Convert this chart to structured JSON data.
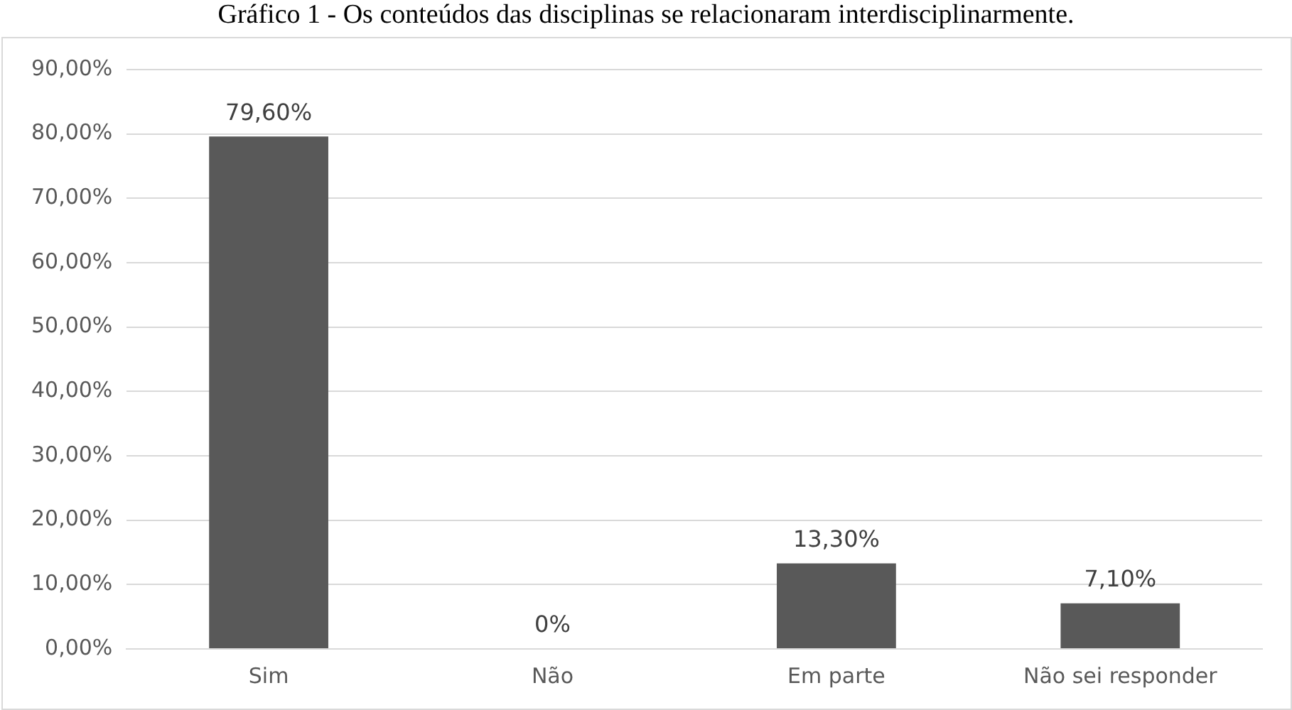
{
  "chart_data": {
    "type": "bar",
    "title": "Gráfico 1 - Os conteúdos das disciplinas se relacionaram interdisciplinarmente.",
    "categories": [
      "Sim",
      "Não",
      "Em parte",
      "Não sei responder"
    ],
    "values": [
      79.6,
      0,
      13.3,
      7.1
    ],
    "value_labels": [
      "79,60%",
      "0%",
      "13,30%",
      "7,10%"
    ],
    "color": "#595959",
    "ylim": [
      0,
      90
    ],
    "yticks": [
      {
        "value": 0,
        "label": "0,00%"
      },
      {
        "value": 10,
        "label": "10,00%"
      },
      {
        "value": 20,
        "label": "20,00%"
      },
      {
        "value": 30,
        "label": "30,00%"
      },
      {
        "value": 40,
        "label": "40,00%"
      },
      {
        "value": 50,
        "label": "50,00%"
      },
      {
        "value": 60,
        "label": "60,00%"
      },
      {
        "value": 70,
        "label": "70,00%"
      },
      {
        "value": 80,
        "label": "80,00%"
      },
      {
        "value": 90,
        "label": "90,00%"
      }
    ],
    "grid": "y",
    "legend": false
  }
}
